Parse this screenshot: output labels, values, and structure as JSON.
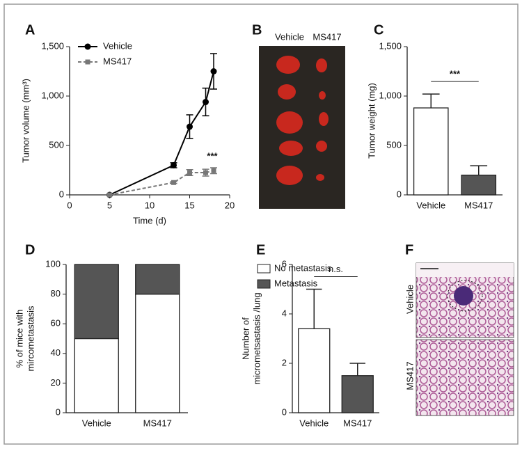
{
  "chart_data": [
    {
      "type": "line",
      "panel_label": "A",
      "xlabel": "Time (d)",
      "ylabel": "Tumor volume (mm³)",
      "x": [
        5,
        13,
        15,
        17,
        18
      ],
      "series": [
        {
          "name": "Vehicle",
          "color": "#000000",
          "marker": "circle",
          "dashed": false,
          "values": [
            0,
            300,
            690,
            940,
            1250
          ],
          "errors": [
            0,
            25,
            120,
            140,
            180
          ]
        },
        {
          "name": "MS417",
          "color": "#777777",
          "marker": "square",
          "dashed": true,
          "values": [
            0,
            125,
            225,
            225,
            245
          ],
          "errors": [
            0,
            10,
            30,
            35,
            30
          ]
        }
      ],
      "xlim": [
        0,
        20
      ],
      "xticks": [
        0,
        5,
        10,
        15,
        20
      ],
      "ylim": [
        0,
        1500
      ],
      "yticks": [
        0,
        500,
        {
          "value": 1000,
          "label": "1,000"
        },
        {
          "value": 1500,
          "label": "1,500"
        }
      ],
      "annotation": "***",
      "legend": "upper left"
    },
    {
      "type": "bar",
      "panel_label": "C",
      "ylabel": "Tumor weight (mg)",
      "categories": [
        "Vehicle",
        "MS417"
      ],
      "values": [
        880,
        200
      ],
      "errors": [
        140,
        95
      ],
      "colors": [
        "#ffffff",
        "#555555"
      ],
      "ylim": [
        0,
        1500
      ],
      "yticks": [
        0,
        500,
        {
          "value": 1000,
          "label": "1,000"
        },
        {
          "value": 1500,
          "label": "1,500"
        }
      ],
      "annotation": "***"
    },
    {
      "type": "stacked_bar",
      "panel_label": "D",
      "ylabel": [
        "% of mice with",
        "mircometastasis"
      ],
      "categories": [
        "Vehicle",
        "MS417"
      ],
      "series": [
        {
          "name": "No metastasis",
          "color": "#ffffff",
          "values": [
            50,
            80
          ]
        },
        {
          "name": "Metastasis",
          "color": "#555555",
          "values": [
            50,
            20
          ]
        }
      ],
      "ylim": [
        0,
        100
      ],
      "yticks": [
        0,
        20,
        40,
        60,
        80,
        100
      ],
      "legend": "upper right"
    },
    {
      "type": "bar",
      "panel_label": "E",
      "ylabel": [
        "Number of",
        "micrometsastasis /lung"
      ],
      "categories": [
        "Vehicle",
        "MS417"
      ],
      "values": [
        3.4,
        1.5
      ],
      "errors": [
        1.6,
        0.5
      ],
      "colors": [
        "#ffffff",
        "#555555"
      ],
      "ylim": [
        0,
        6
      ],
      "yticks": [
        0,
        2,
        4,
        6
      ],
      "annotation": "n.s."
    }
  ],
  "photo_panel": {
    "panel_label": "B",
    "columns": [
      "Vehicle",
      "MS417"
    ]
  },
  "histology_panel": {
    "panel_label": "F",
    "rows": [
      "Vehicle",
      "MS417"
    ]
  }
}
